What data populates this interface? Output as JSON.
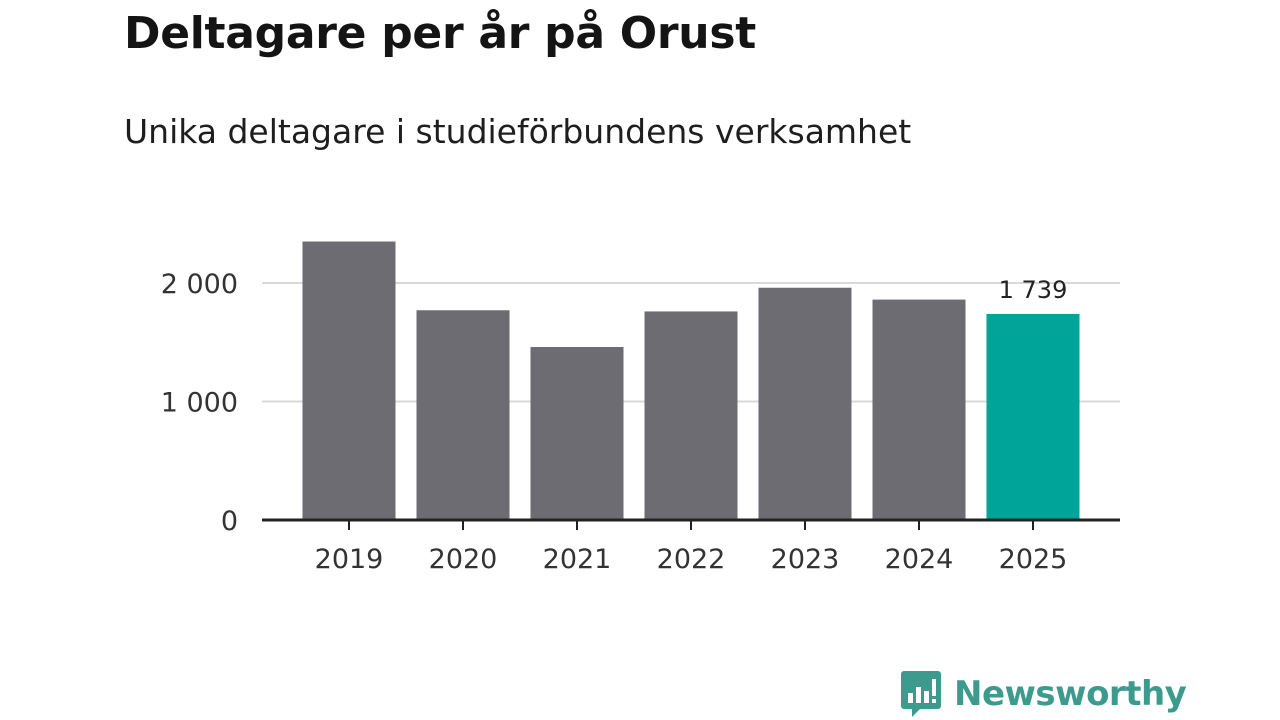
{
  "chart_data": {
    "type": "bar",
    "title": "Deltagare per år på Orust",
    "subtitle": "Unika deltagare i studieförbundens verksamhet",
    "categories": [
      "2019",
      "2020",
      "2021",
      "2022",
      "2023",
      "2024",
      "2025"
    ],
    "values": [
      2350,
      1770,
      1460,
      1760,
      1960,
      1860,
      1739
    ],
    "ylim": [
      0,
      2400
    ],
    "yticks": [
      0,
      1000,
      2000
    ],
    "ytick_labels": [
      "0",
      "1 000",
      "2 000"
    ],
    "grid": true,
    "highlight_index": 6,
    "highlight_label": "1 739",
    "colors": {
      "bar": "#6d6c72",
      "highlight": "#00a499",
      "grid": "#d9d9d9",
      "axis": "#222222"
    }
  },
  "brand": {
    "name": "Newsworthy",
    "logo_icon": "bar-chart-speech-bubble-icon",
    "color": "#3d9b8e"
  }
}
